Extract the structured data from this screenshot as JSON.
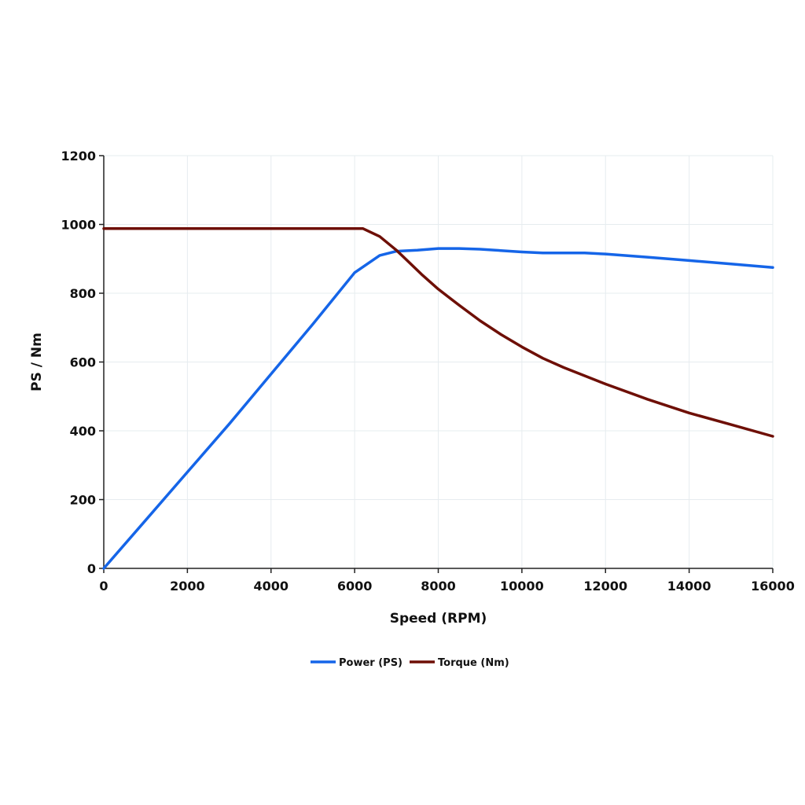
{
  "chart_data": {
    "type": "line",
    "title": "",
    "xlabel": "Speed (RPM)",
    "ylabel": "PS / Nm",
    "xlim": [
      0,
      16000
    ],
    "ylim": [
      0,
      1200
    ],
    "xticks": [
      "0",
      "2000",
      "4000",
      "6000",
      "8000",
      "10000",
      "12000",
      "14000",
      "16000"
    ],
    "yticks": [
      "0",
      "200",
      "400",
      "600",
      "800",
      "1000",
      "1200"
    ],
    "grid": true,
    "legend_position": "bottom-center",
    "series": [
      {
        "name": "Power (PS)",
        "color": "#1565e8",
        "x": [
          0,
          1000,
          2000,
          3000,
          4000,
          5000,
          6000,
          6600,
          7000,
          7500,
          8000,
          8500,
          9000,
          10000,
          10500,
          11500,
          12000,
          13000,
          14000,
          15000,
          16000
        ],
        "y": [
          0,
          140,
          280,
          420,
          565,
          710,
          860,
          910,
          922,
          925,
          930,
          930,
          928,
          920,
          917,
          917,
          914,
          905,
          895,
          885,
          875
        ]
      },
      {
        "name": "Torque (Nm)",
        "color": "#6e0f06",
        "x": [
          0,
          1000,
          2000,
          3000,
          4000,
          5000,
          6000,
          6200,
          6600,
          7000,
          7600,
          8000,
          8500,
          9000,
          9500,
          10000,
          10500,
          11000,
          12000,
          13000,
          14000,
          15000,
          16000
        ],
        "y": [
          988,
          988,
          988,
          988,
          988,
          988,
          988,
          988,
          965,
          925,
          855,
          812,
          765,
          720,
          680,
          644,
          611,
          584,
          536,
          492,
          452,
          418,
          384
        ]
      }
    ]
  }
}
